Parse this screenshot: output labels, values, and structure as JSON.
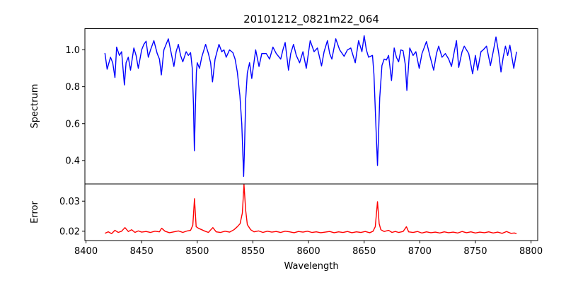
{
  "chart_data": [
    {
      "type": "line",
      "panel": "top",
      "title": "20101212_0821m22_064",
      "xlabel": "",
      "ylabel": "Spectrum",
      "xlim": [
        8399,
        8806
      ],
      "ylim": [
        0.273,
        1.115
      ],
      "xticks": [
        8400,
        8450,
        8500,
        8550,
        8600,
        8650,
        8700,
        8750,
        8800
      ],
      "yticks": [
        0.4,
        0.6,
        0.8,
        1.0
      ],
      "ytick_labels": [
        "0.4",
        "0.6",
        "0.8",
        "1.0"
      ],
      "grid": false,
      "series": [
        {
          "name": "Spectrum",
          "color": "#0000ff",
          "x": [
            8417,
            8419,
            8422,
            8424,
            8426,
            8427.5,
            8430,
            8432,
            8434.5,
            8436,
            8438,
            8440,
            8443,
            8445,
            8447,
            8450,
            8452,
            8454,
            8456,
            8458,
            8461,
            8464,
            8466,
            8467.7,
            8470,
            8472,
            8474,
            8476,
            8479,
            8481,
            8483,
            8485,
            8487,
            8490,
            8492,
            8494,
            8495.5,
            8496.6,
            8497.4,
            8498.3,
            8499.2,
            8500,
            8502,
            8504,
            8507.5,
            8510,
            8512,
            8513.7,
            8516,
            8519.5,
            8522,
            8524,
            8526,
            8529,
            8532,
            8534,
            8536,
            8538.3,
            8540,
            8541.7,
            8542.6,
            8543.5,
            8545,
            8547,
            8549,
            8552.5,
            8555.5,
            8558,
            8562,
            8565,
            8568,
            8571,
            8575,
            8577,
            8579,
            8582,
            8584,
            8586.5,
            8589,
            8592,
            8595,
            8598,
            8601.5,
            8605,
            8608,
            8611.7,
            8614,
            8617,
            8619,
            8621,
            8624.5,
            8628,
            8632,
            8635,
            8638,
            8642,
            8645,
            8648,
            8650,
            8652,
            8654,
            8657.5,
            8658.8,
            8660.5,
            8662,
            8663,
            8664,
            8666,
            8668,
            8670,
            8672,
            8674.6,
            8677,
            8679,
            8681,
            8683,
            8685,
            8687,
            8688.4,
            8691,
            8694,
            8696.5,
            8699.5,
            8702,
            8706,
            8709,
            8712.5,
            8715,
            8717,
            8720,
            8723,
            8726,
            8728.5,
            8731,
            8733,
            8735,
            8738,
            8740,
            8744,
            8747.5,
            8750,
            8752,
            8755,
            8757,
            8760,
            8763.5,
            8766,
            8768.5,
            8771,
            8773,
            8775,
            8777,
            8779,
            8781,
            8784.5,
            8787
          ],
          "y": [
            0.983,
            0.895,
            0.96,
            0.93,
            0.85,
            1.015,
            0.97,
            0.99,
            0.81,
            0.93,
            0.96,
            0.89,
            1.01,
            0.97,
            0.9,
            1.0,
            1.03,
            1.047,
            0.96,
            1.0,
            1.05,
            0.98,
            0.95,
            0.864,
            1.0,
            1.03,
            1.06,
            1.0,
            0.91,
            0.99,
            1.03,
            0.97,
            0.935,
            0.99,
            0.97,
            0.985,
            0.9,
            0.7,
            0.453,
            0.68,
            0.88,
            0.93,
            0.9,
            0.96,
            1.03,
            0.98,
            0.93,
            0.826,
            0.95,
            1.03,
            0.99,
            1.0,
            0.96,
            1.0,
            0.985,
            0.95,
            0.88,
            0.753,
            0.6,
            0.314,
            0.5,
            0.73,
            0.875,
            0.93,
            0.845,
            1.0,
            0.91,
            0.98,
            0.98,
            0.95,
            1.015,
            0.98,
            0.95,
            1.0,
            1.04,
            0.89,
            0.98,
            1.03,
            0.97,
            0.93,
            0.99,
            0.9,
            1.05,
            0.99,
            1.01,
            0.913,
            0.99,
            1.05,
            0.98,
            0.95,
            1.06,
            1.0,
            0.965,
            1.0,
            1.01,
            0.93,
            1.05,
            0.99,
            1.077,
            1.0,
            0.96,
            0.97,
            0.868,
            0.6,
            0.373,
            0.55,
            0.74,
            0.915,
            0.95,
            0.945,
            0.97,
            0.834,
            1.01,
            0.96,
            0.935,
            1.0,
            0.995,
            0.92,
            0.78,
            1.01,
            0.97,
            0.99,
            0.9,
            0.98,
            1.045,
            0.97,
            0.89,
            0.98,
            1.02,
            0.96,
            0.98,
            0.95,
            0.91,
            0.99,
            1.05,
            0.905,
            0.99,
            1.02,
            0.98,
            0.87,
            0.97,
            0.89,
            0.99,
            1.0,
            1.02,
            0.915,
            0.99,
            1.07,
            0.98,
            0.88,
            0.96,
            1.02,
            0.97,
            1.025,
            0.9,
            0.99
          ]
        }
      ]
    },
    {
      "type": "line",
      "panel": "bottom",
      "xlabel": "Wavelength",
      "ylabel": "Error",
      "xlim": [
        8399,
        8806
      ],
      "ylim": [
        0.0169,
        0.0357
      ],
      "xticks": [
        8400,
        8450,
        8500,
        8550,
        8600,
        8650,
        8700,
        8750,
        8800
      ],
      "xtick_labels": [
        "8400",
        "8450",
        "8500",
        "8550",
        "8600",
        "8650",
        "8700",
        "8750",
        "8800"
      ],
      "yticks": [
        0.02,
        0.03
      ],
      "ytick_labels": [
        "0.02",
        "0.03"
      ],
      "grid": false,
      "series": [
        {
          "name": "Error",
          "color": "#ff0000",
          "x": [
            8417,
            8420,
            8423,
            8426,
            8429,
            8432,
            8435,
            8438,
            8441,
            8444,
            8447,
            8450,
            8454,
            8458,
            8462,
            8466,
            8468,
            8471,
            8475,
            8479,
            8483,
            8487,
            8491,
            8494,
            8496,
            8497.5,
            8499,
            8501,
            8504,
            8507,
            8510,
            8514,
            8517,
            8521,
            8525,
            8529,
            8533,
            8536,
            8538.5,
            8540.5,
            8542,
            8543.5,
            8545,
            8548,
            8551,
            8555,
            8559,
            8563,
            8567,
            8571,
            8575,
            8579,
            8583,
            8587,
            8591,
            8595,
            8599,
            8603,
            8607,
            8611,
            8615,
            8619,
            8623,
            8627,
            8631,
            8635,
            8639,
            8643,
            8647,
            8651,
            8655,
            8658,
            8660,
            8662,
            8663.5,
            8665,
            8668,
            8672,
            8675,
            8678,
            8681,
            8685,
            8688,
            8690,
            8694,
            8698,
            8702,
            8706,
            8710,
            8714,
            8718,
            8722,
            8726,
            8730,
            8734,
            8738,
            8742,
            8746,
            8750,
            8754,
            8758,
            8762,
            8766,
            8770,
            8774,
            8778,
            8782,
            8785,
            8787
          ],
          "y": [
            0.0193,
            0.0198,
            0.0192,
            0.0203,
            0.0196,
            0.02,
            0.0212,
            0.0199,
            0.0205,
            0.0196,
            0.0201,
            0.0197,
            0.0199,
            0.0196,
            0.02,
            0.0198,
            0.021,
            0.02,
            0.0195,
            0.0198,
            0.0201,
            0.0196,
            0.0201,
            0.0203,
            0.022,
            0.0308,
            0.0215,
            0.021,
            0.0205,
            0.02,
            0.0196,
            0.0212,
            0.0198,
            0.0196,
            0.02,
            0.0197,
            0.0205,
            0.0215,
            0.0225,
            0.026,
            0.0355,
            0.027,
            0.0222,
            0.0205,
            0.0198,
            0.0201,
            0.0196,
            0.02,
            0.0197,
            0.0199,
            0.0196,
            0.02,
            0.0198,
            0.0195,
            0.0199,
            0.0197,
            0.02,
            0.0196,
            0.0198,
            0.0195,
            0.0197,
            0.0199,
            0.0195,
            0.0198,
            0.0196,
            0.0199,
            0.0195,
            0.0198,
            0.0196,
            0.0199,
            0.0195,
            0.02,
            0.0215,
            0.0298,
            0.0225,
            0.0205,
            0.0199,
            0.0203,
            0.0196,
            0.0199,
            0.0196,
            0.0199,
            0.0215,
            0.0198,
            0.0196,
            0.0199,
            0.0194,
            0.0198,
            0.0195,
            0.0197,
            0.0194,
            0.0198,
            0.0195,
            0.0197,
            0.0194,
            0.0199,
            0.0195,
            0.0198,
            0.0194,
            0.0197,
            0.0195,
            0.0198,
            0.0194,
            0.0197,
            0.0193,
            0.0199,
            0.0193,
            0.0194,
            0.0192
          ]
        }
      ]
    }
  ]
}
